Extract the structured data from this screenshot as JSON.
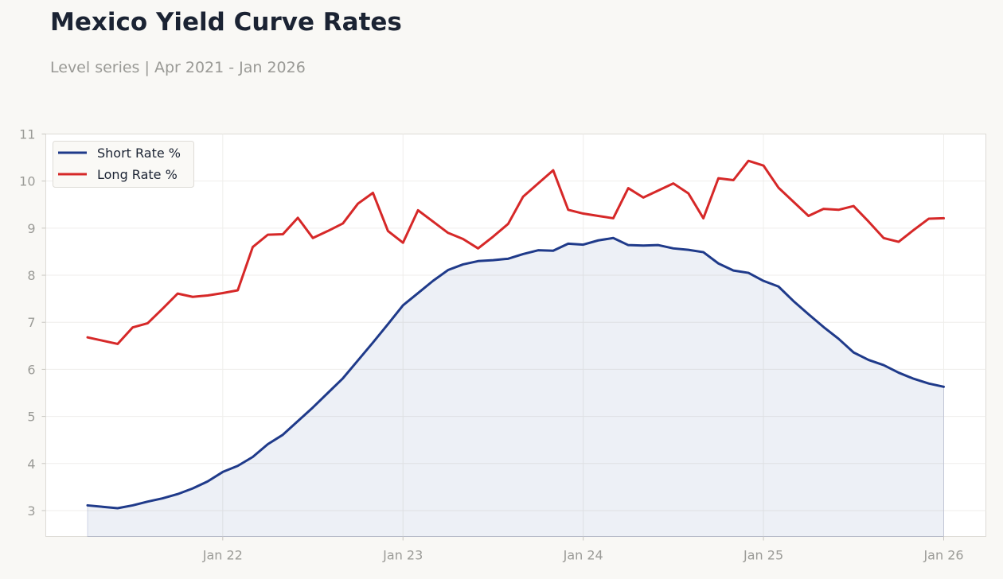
{
  "header": {
    "title": "Mexico Yield Curve Rates",
    "subtitle": "Level series | Apr 2021 - Jan 2026"
  },
  "colors": {
    "short": "#1f3a8a",
    "long": "#d62828",
    "area_fill": "#1f3a8a"
  },
  "chart_data": {
    "type": "line",
    "title": "Mexico Yield Curve Rates",
    "subtitle": "Level series | Apr 2021 - Jan 2026",
    "xlabel": "",
    "ylabel": "",
    "ylim": [
      2.45,
      11
    ],
    "yticks": [
      3,
      4,
      5,
      6,
      7,
      8,
      9,
      10,
      11
    ],
    "xticks": [
      {
        "label": "Jan 22",
        "date": "2022-01"
      },
      {
        "label": "Jan 23",
        "date": "2023-01"
      },
      {
        "label": "Jan 24",
        "date": "2024-01"
      },
      {
        "label": "Jan 25",
        "date": "2025-01"
      },
      {
        "label": "Jan 26",
        "date": "2026-01"
      }
    ],
    "grid": true,
    "legend": "top-left",
    "x": [
      "2021-04",
      "2021-05",
      "2021-06",
      "2021-07",
      "2021-08",
      "2021-09",
      "2021-10",
      "2021-11",
      "2021-12",
      "2022-01",
      "2022-02",
      "2022-03",
      "2022-04",
      "2022-05",
      "2022-06",
      "2022-07",
      "2022-08",
      "2022-09",
      "2022-10",
      "2022-11",
      "2022-12",
      "2023-01",
      "2023-02",
      "2023-03",
      "2023-04",
      "2023-05",
      "2023-06",
      "2023-07",
      "2023-08",
      "2023-09",
      "2023-10",
      "2023-11",
      "2023-12",
      "2024-01",
      "2024-02",
      "2024-03",
      "2024-04",
      "2024-05",
      "2024-06",
      "2024-07",
      "2024-08",
      "2024-09",
      "2024-10",
      "2024-11",
      "2024-12",
      "2025-01",
      "2025-02",
      "2025-03",
      "2025-04",
      "2025-05",
      "2025-06",
      "2025-07",
      "2025-08",
      "2025-09",
      "2025-10",
      "2025-11",
      "2025-12",
      "2026-01"
    ],
    "series": [
      {
        "name": "Short Rate %",
        "values": [
          3.11,
          3.08,
          3.05,
          3.11,
          3.19,
          3.26,
          3.35,
          3.47,
          3.62,
          3.82,
          3.95,
          4.14,
          4.41,
          4.61,
          4.9,
          5.19,
          5.5,
          5.81,
          6.19,
          6.57,
          6.96,
          7.36,
          7.62,
          7.88,
          8.11,
          8.23,
          8.3,
          8.32,
          8.35,
          8.45,
          8.53,
          8.52,
          8.67,
          8.65,
          8.74,
          8.79,
          8.64,
          8.63,
          8.64,
          8.57,
          8.54,
          8.49,
          8.25,
          8.1,
          8.05,
          7.88,
          7.76,
          7.45,
          7.17,
          6.9,
          6.65,
          6.36,
          6.2,
          6.09,
          5.93,
          5.8,
          5.7,
          5.63
        ]
      },
      {
        "name": "Long Rate %",
        "values": [
          6.68,
          6.61,
          6.54,
          6.89,
          6.98,
          7.29,
          7.61,
          7.54,
          7.57,
          7.62,
          7.68,
          8.6,
          8.86,
          8.87,
          9.22,
          8.79,
          8.94,
          9.1,
          9.52,
          9.75,
          8.94,
          8.69,
          9.38,
          9.14,
          8.9,
          8.77,
          8.57,
          8.82,
          9.09,
          9.67,
          9.95,
          10.23,
          9.39,
          9.31,
          9.26,
          9.21,
          9.85,
          9.65,
          9.8,
          9.95,
          9.74,
          9.21,
          10.06,
          10.02,
          10.43,
          10.33,
          9.86,
          9.56,
          9.26,
          9.41,
          9.39,
          9.47,
          9.14,
          8.79,
          8.71,
          8.96,
          9.2,
          9.21
        ]
      }
    ]
  }
}
